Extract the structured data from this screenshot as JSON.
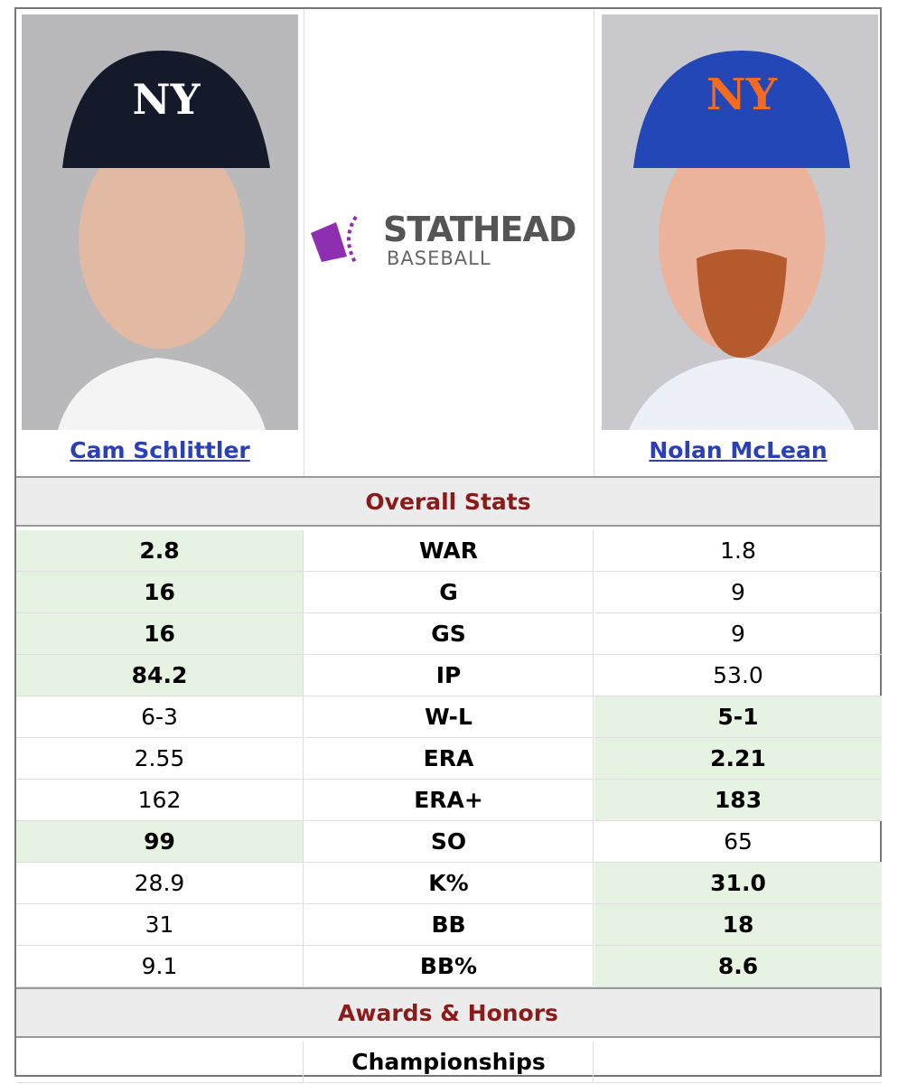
{
  "players": [
    {
      "name": "Cam Schlittler"
    },
    {
      "name": "Nolan McLean"
    }
  ],
  "logo": {
    "title": "STATHEAD",
    "subtitle": "BASEBALL"
  },
  "sections": [
    {
      "title": "Overall Stats",
      "rows": [
        {
          "left": "2.8",
          "label": "WAR",
          "right": "1.8",
          "highlight": "left"
        },
        {
          "left": "16",
          "label": "G",
          "right": "9",
          "highlight": "left"
        },
        {
          "left": "16",
          "label": "GS",
          "right": "9",
          "highlight": "left"
        },
        {
          "left": "84.2",
          "label": "IP",
          "right": "53.0",
          "highlight": "left"
        },
        {
          "left": "6-3",
          "label": "W-L",
          "right": "5-1",
          "highlight": "right"
        },
        {
          "left": "2.55",
          "label": "ERA",
          "right": "2.21",
          "highlight": "right"
        },
        {
          "left": "162",
          "label": "ERA+",
          "right": "183",
          "highlight": "right"
        },
        {
          "left": "99",
          "label": "SO",
          "right": "65",
          "highlight": "left"
        },
        {
          "left": "28.9",
          "label": "K%",
          "right": "31.0",
          "highlight": "right"
        },
        {
          "left": "31",
          "label": "BB",
          "right": "18",
          "highlight": "right"
        },
        {
          "left": "9.1",
          "label": "BB%",
          "right": "8.6",
          "highlight": "right"
        }
      ]
    },
    {
      "title": "Awards & Honors",
      "rows": [
        {
          "label": "Championships"
        }
      ]
    }
  ]
}
